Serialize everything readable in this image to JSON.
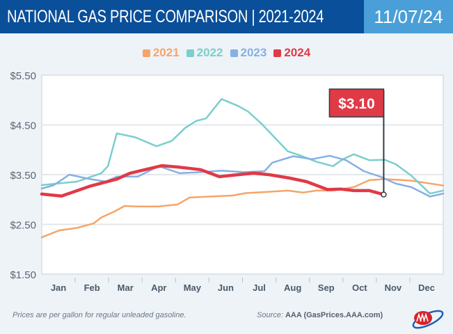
{
  "header": {
    "title": "NATIONAL GAS PRICE COMPARISON | 2021-2024",
    "date": "11/07/24"
  },
  "footer": {
    "note": "Prices are per gallon for regular unleaded gasoline.",
    "source_label": "Source:",
    "source_value": "AAA (GasPrices.AAA.com)",
    "logo_text": "AAA"
  },
  "colors": {
    "header_bg": "#0a4f99",
    "date_bg": "#4a9fd8",
    "2021": "#f7a46a",
    "2022": "#79cfcb",
    "2023": "#86b0e3",
    "2024": "#e03a47"
  },
  "chart_data": {
    "type": "line",
    "title": "NATIONAL GAS PRICE COMPARISON | 2021-2024",
    "xlabel": "",
    "ylabel": "",
    "x_ticks": [
      "Jan",
      "Feb",
      "Mar",
      "Apr",
      "May",
      "Jun",
      "Jul",
      "Aug",
      "Sep",
      "Oct",
      "Nov",
      "Dec"
    ],
    "y_ticks": [
      "$5.50",
      "$4.50",
      "$3.50",
      "$2.50",
      "$1.50"
    ],
    "ylim": [
      1.5,
      5.5
    ],
    "grid": true,
    "legend": "top-center",
    "annotation": {
      "label": "$3.10",
      "date": "11-07",
      "value": 3.1,
      "series": "2024"
    },
    "series": [
      {
        "name": "2021",
        "color": "#f7a46a",
        "points": [
          [
            "01-01",
            2.24
          ],
          [
            "01-17",
            2.38
          ],
          [
            "02-02",
            2.43
          ],
          [
            "02-17",
            2.52
          ],
          [
            "02-24",
            2.64
          ],
          [
            "03-08",
            2.76
          ],
          [
            "03-17",
            2.87
          ],
          [
            "03-29",
            2.86
          ],
          [
            "04-17",
            2.86
          ],
          [
            "05-04",
            2.9
          ],
          [
            "05-15",
            3.04
          ],
          [
            "06-02",
            3.06
          ],
          [
            "06-23",
            3.08
          ],
          [
            "07-05",
            3.13
          ],
          [
            "07-22",
            3.15
          ],
          [
            "08-12",
            3.18
          ],
          [
            "08-26",
            3.14
          ],
          [
            "09-07",
            3.18
          ],
          [
            "09-22",
            3.18
          ],
          [
            "10-11",
            3.25
          ],
          [
            "10-25",
            3.39
          ],
          [
            "11-08",
            3.41
          ],
          [
            "12-02",
            3.38
          ],
          [
            "12-31",
            3.28
          ]
        ]
      },
      {
        "name": "2022",
        "color": "#79cfcb",
        "points": [
          [
            "01-01",
            3.29
          ],
          [
            "02-02",
            3.36
          ],
          [
            "02-24",
            3.53
          ],
          [
            "03-02",
            3.67
          ],
          [
            "03-10",
            4.33
          ],
          [
            "03-27",
            4.25
          ],
          [
            "04-15",
            4.07
          ],
          [
            "04-29",
            4.18
          ],
          [
            "05-11",
            4.44
          ],
          [
            "05-21",
            4.58
          ],
          [
            "05-30",
            4.63
          ],
          [
            "06-13",
            5.02
          ],
          [
            "06-28",
            4.88
          ],
          [
            "07-07",
            4.77
          ],
          [
            "07-19",
            4.53
          ],
          [
            "07-31",
            4.25
          ],
          [
            "08-12",
            3.97
          ],
          [
            "08-24",
            3.88
          ],
          [
            "09-07",
            3.76
          ],
          [
            "09-22",
            3.67
          ],
          [
            "10-01",
            3.81
          ],
          [
            "10-11",
            3.91
          ],
          [
            "10-25",
            3.79
          ],
          [
            "11-08",
            3.8
          ],
          [
            "11-18",
            3.71
          ],
          [
            "12-02",
            3.48
          ],
          [
            "12-19",
            3.12
          ],
          [
            "12-31",
            3.18
          ]
        ]
      },
      {
        "name": "2023",
        "color": "#86b0e3",
        "points": [
          [
            "01-01",
            3.22
          ],
          [
            "01-12",
            3.29
          ],
          [
            "01-26",
            3.5
          ],
          [
            "02-14",
            3.41
          ],
          [
            "02-28",
            3.36
          ],
          [
            "03-10",
            3.46
          ],
          [
            "03-29",
            3.46
          ],
          [
            "04-17",
            3.67
          ],
          [
            "05-06",
            3.53
          ],
          [
            "05-25",
            3.55
          ],
          [
            "06-13",
            3.58
          ],
          [
            "07-03",
            3.55
          ],
          [
            "07-22",
            3.57
          ],
          [
            "07-29",
            3.74
          ],
          [
            "08-17",
            3.87
          ],
          [
            "09-03",
            3.81
          ],
          [
            "09-19",
            3.88
          ],
          [
            "10-04",
            3.79
          ],
          [
            "10-20",
            3.57
          ],
          [
            "11-04",
            3.46
          ],
          [
            "11-18",
            3.32
          ],
          [
            "12-02",
            3.25
          ],
          [
            "12-19",
            3.06
          ],
          [
            "12-31",
            3.12
          ]
        ]
      },
      {
        "name": "2024",
        "color": "#e03a47",
        "points": [
          [
            "01-01",
            3.11
          ],
          [
            "01-19",
            3.07
          ],
          [
            "02-14",
            3.27
          ],
          [
            "03-10",
            3.41
          ],
          [
            "03-22",
            3.53
          ],
          [
            "04-20",
            3.68
          ],
          [
            "05-06",
            3.65
          ],
          [
            "05-25",
            3.6
          ],
          [
            "06-11",
            3.46
          ],
          [
            "06-28",
            3.5
          ],
          [
            "07-12",
            3.53
          ],
          [
            "07-26",
            3.5
          ],
          [
            "08-14",
            3.43
          ],
          [
            "08-29",
            3.36
          ],
          [
            "09-17",
            3.2
          ],
          [
            "09-29",
            3.21
          ],
          [
            "10-11",
            3.18
          ],
          [
            "10-25",
            3.18
          ],
          [
            "11-07",
            3.1
          ]
        ]
      }
    ]
  }
}
